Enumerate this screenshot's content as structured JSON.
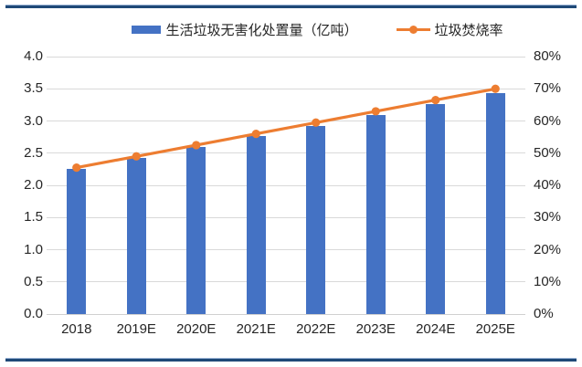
{
  "page": {
    "background": "#ffffff",
    "rule_color": "#1f4977",
    "rule_edge_color": "#9ab3d5"
  },
  "legend": {
    "position": "top-center",
    "items": [
      {
        "label": "生活垃圾无害化处置量（亿吨）",
        "marker": "bar-swatch",
        "color": "#4472c4"
      },
      {
        "label": "垃圾焚烧率",
        "marker": "line-dot-swatch",
        "color": "#ed7d31"
      }
    ]
  },
  "chart_data": {
    "type": "bar",
    "subtype": "combo-bar-line-dual-axis",
    "categories": [
      "2018",
      "2019E",
      "2020E",
      "2021E",
      "2022E",
      "2023E",
      "2024E",
      "2025E"
    ],
    "series": [
      {
        "name": "生活垃圾无害化处置量（亿吨）",
        "type": "bar",
        "axis": "left",
        "color": "#4472c4",
        "values": [
          2.26,
          2.42,
          2.59,
          2.76,
          2.92,
          3.09,
          3.26,
          3.43
        ]
      },
      {
        "name": "垃圾焚烧率",
        "type": "line",
        "axis": "right",
        "color": "#ed7d31",
        "marker": "circle",
        "values": [
          45.5,
          49,
          52.5,
          56,
          59.5,
          63,
          66.5,
          70
        ]
      }
    ],
    "left_axis": {
      "min": 0,
      "max": 4.0,
      "step": 0.5,
      "ticks": [
        "0.0",
        "0.5",
        "1.0",
        "1.5",
        "2.0",
        "2.5",
        "3.0",
        "3.5",
        "4.0"
      ]
    },
    "right_axis": {
      "min": 0,
      "max": 80,
      "step": 10,
      "ticks": [
        "0%",
        "10%",
        "20%",
        "30%",
        "40%",
        "50%",
        "60%",
        "70%",
        "80%"
      ]
    },
    "grid": true,
    "gridline_color": "#d9d9d9",
    "baseline_color": "#d0d0d0",
    "text_color": "#262626",
    "legend_position": "top",
    "title": ""
  }
}
